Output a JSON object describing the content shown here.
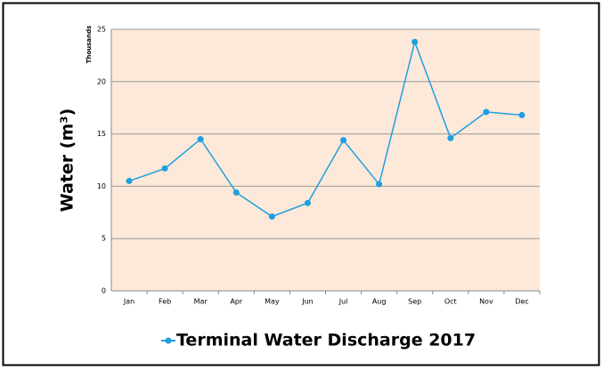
{
  "chart_data": {
    "type": "line",
    "y_label": "Water (m³)",
    "y_unit_label": "Thousands",
    "categories": [
      "Jan",
      "Feb",
      "Mar",
      "Apr",
      "May",
      "Jun",
      "Jul",
      "Aug",
      "Sep",
      "Oct",
      "Nov",
      "Dec"
    ],
    "series": [
      {
        "name": "Terminal Water Discharge 2017",
        "color": "#1f9fdf",
        "values": [
          10.5,
          11.7,
          14.5,
          9.4,
          7.1,
          8.4,
          14.4,
          10.2,
          23.8,
          14.6,
          17.1,
          16.8
        ]
      }
    ],
    "ylim": [
      0,
      25
    ],
    "yticks": [
      0,
      5,
      10,
      15,
      20,
      25
    ],
    "grid": true,
    "legend": "bottom"
  }
}
